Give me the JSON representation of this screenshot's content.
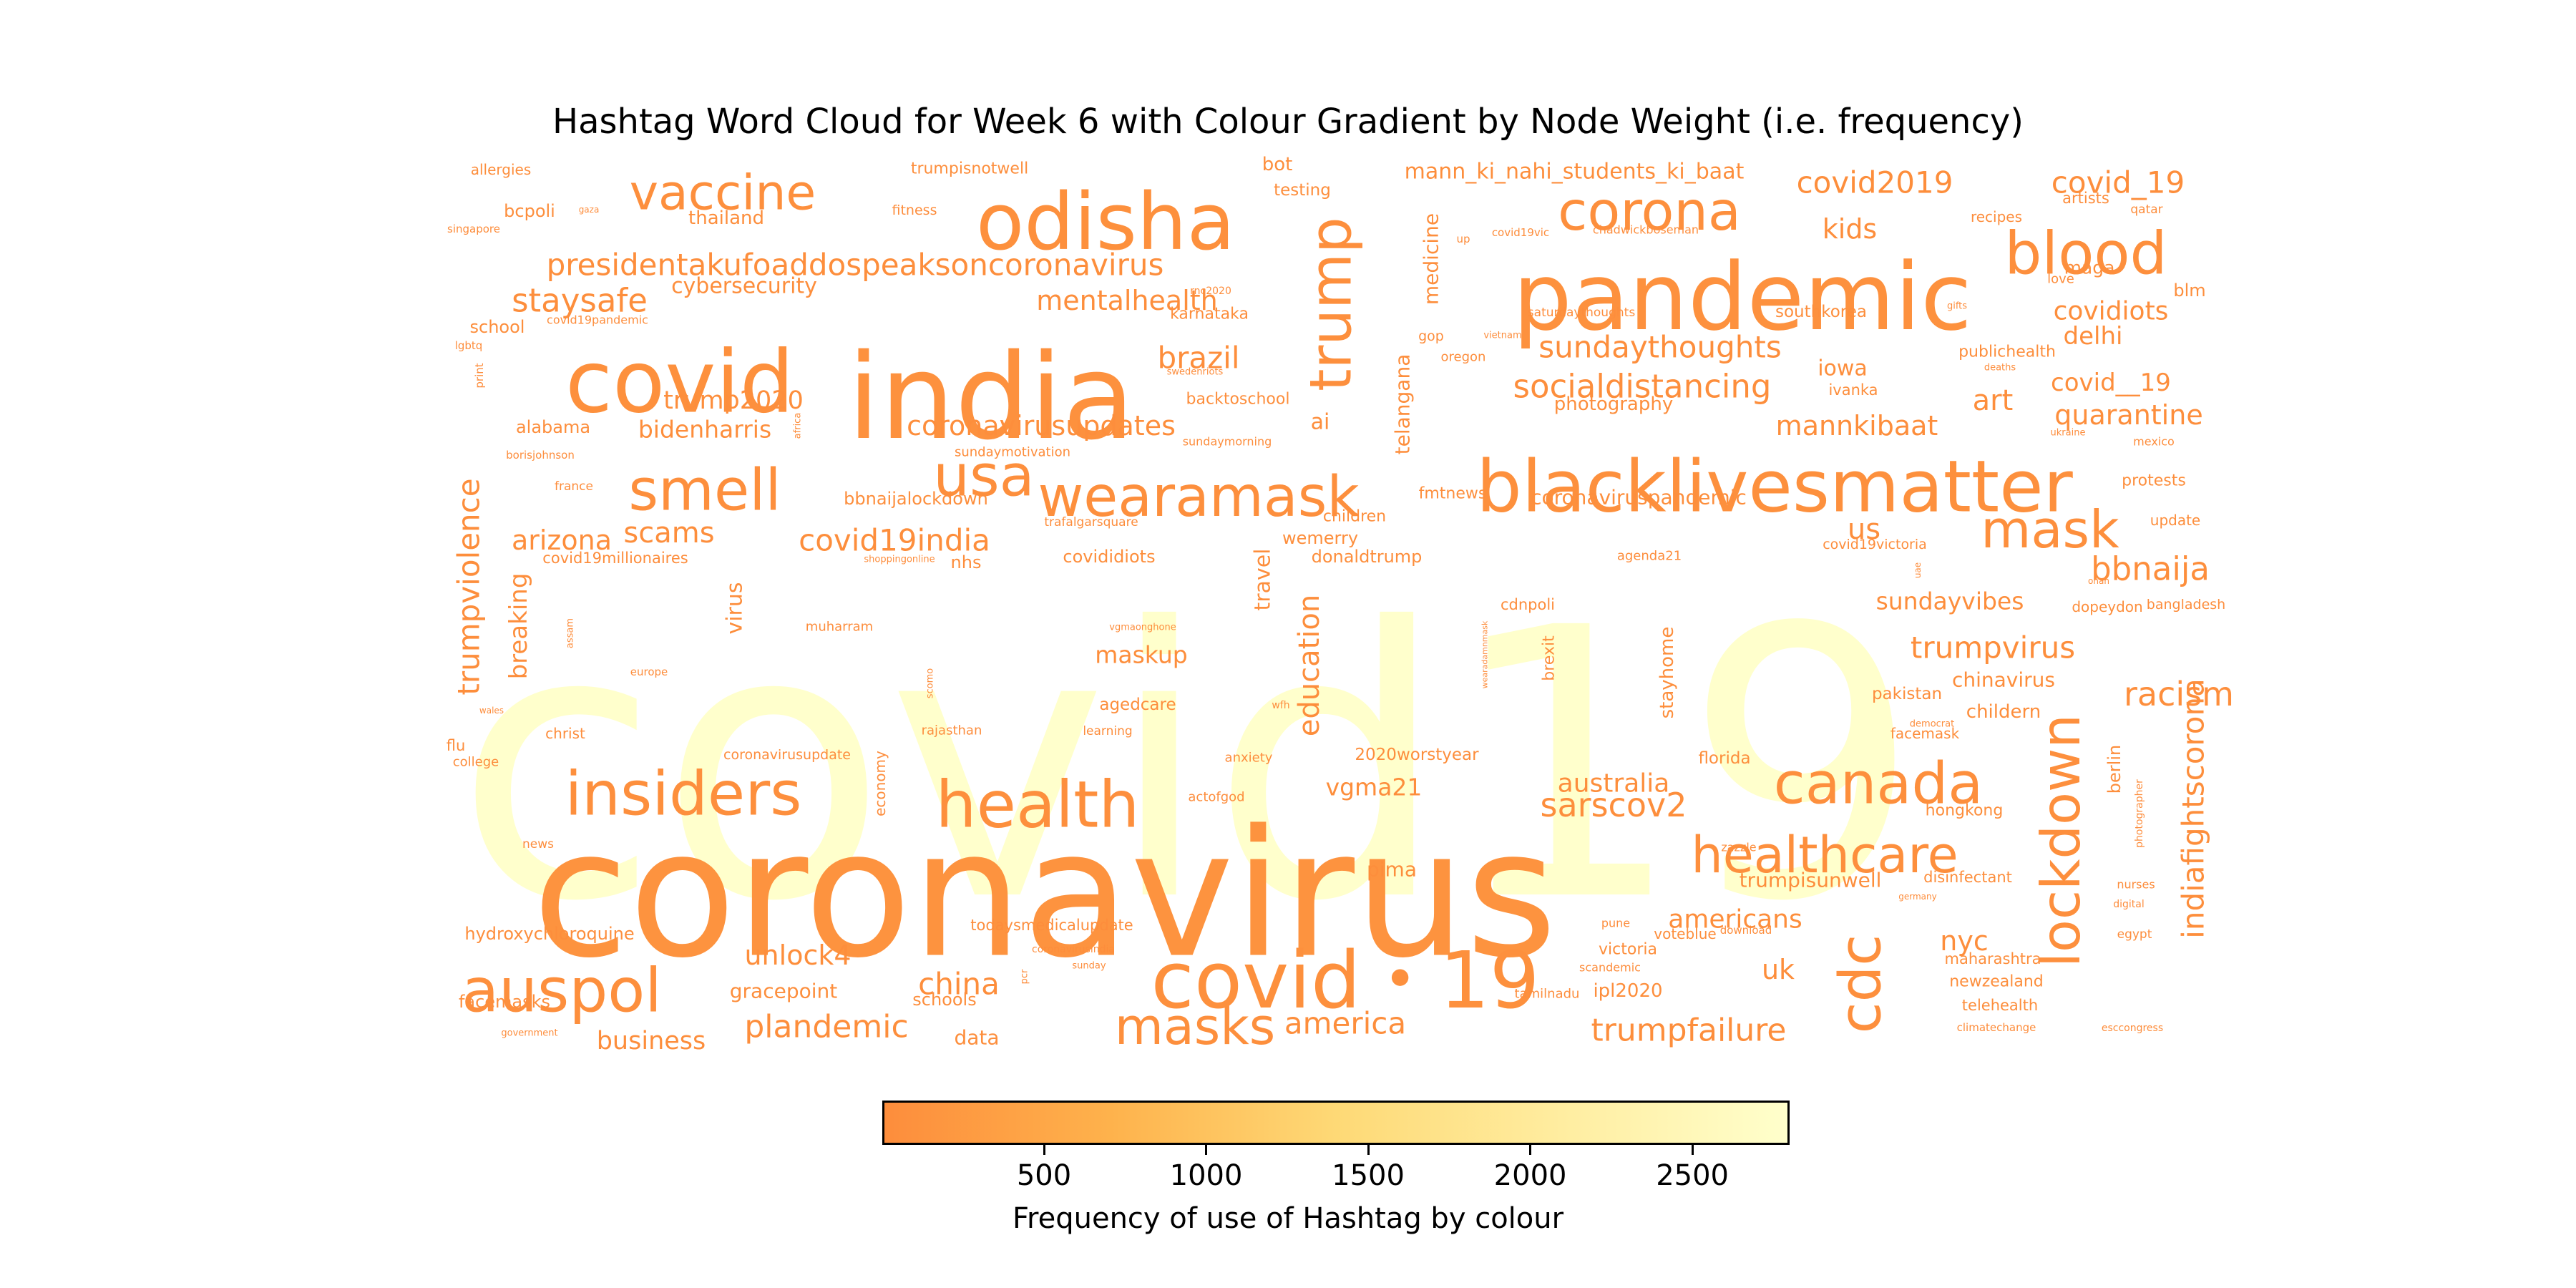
{
  "chart_data": {
    "type": "wordcloud",
    "title": "Hashtag Word Cloud for Week 6 with Colour Gradient by Node Weight (i.e. frequency)",
    "colorbar": {
      "label": "Frequency of use of Hashtag by colour",
      "range": [
        1,
        2800
      ],
      "ticks": [
        500,
        1000,
        1500,
        2000,
        2500
      ],
      "colors": [
        "#fd8d3c",
        "#feb24c",
        "#fed976",
        "#ffeda0",
        "#ffffcc"
      ]
    },
    "words": [
      {
        "text": "covid19",
        "rotate": 0,
        "weight": 2800
      },
      {
        "text": "coronavirus",
        "rotate": 0,
        "weight": 120
      },
      {
        "text": "india",
        "rotate": 0,
        "weight": 80
      },
      {
        "text": "pandemic",
        "rotate": 0,
        "weight": 70
      },
      {
        "text": "covid",
        "rotate": 0,
        "weight": 60
      },
      {
        "text": "blacklivesmatter",
        "rotate": 0,
        "weight": 55
      },
      {
        "text": "odisha",
        "rotate": 0,
        "weight": 50
      },
      {
        "text": "covid・19",
        "rotate": 0,
        "weight": 50
      },
      {
        "text": "health",
        "rotate": 0,
        "weight": 45
      },
      {
        "text": "insiders",
        "rotate": 0,
        "weight": 45
      },
      {
        "text": "auspol",
        "rotate": 0,
        "weight": 45
      },
      {
        "text": "canada",
        "rotate": 0,
        "weight": 40
      },
      {
        "text": "blood",
        "rotate": 0,
        "weight": 40
      },
      {
        "text": "corona",
        "rotate": 0,
        "weight": 40
      },
      {
        "text": "usa",
        "rotate": 0,
        "weight": 40
      },
      {
        "text": "smell",
        "rotate": 0,
        "weight": 40
      },
      {
        "text": "wearamask",
        "rotate": 0,
        "weight": 38
      },
      {
        "text": "masks",
        "rotate": 0,
        "weight": 38
      },
      {
        "text": "mask",
        "rotate": 0,
        "weight": 38
      },
      {
        "text": "healthcare",
        "rotate": 0,
        "weight": 36
      },
      {
        "text": "vaccine",
        "rotate": 0,
        "weight": 36
      },
      {
        "text": "lockdown",
        "rotate": 270,
        "weight": 45
      },
      {
        "text": "cdc",
        "rotate": 270,
        "weight": 45
      },
      {
        "text": "trump",
        "rotate": 270,
        "weight": 36
      },
      {
        "text": "presidentakufoaddospeaksoncoronavirus",
        "rotate": 0,
        "weight": 22
      },
      {
        "text": "covid2019",
        "rotate": 0,
        "weight": 22
      },
      {
        "text": "covid_19",
        "rotate": 0,
        "weight": 22
      },
      {
        "text": "trumpvirus",
        "rotate": 0,
        "weight": 22
      },
      {
        "text": "racism",
        "rotate": 0,
        "weight": 22
      },
      {
        "text": "bbnaija",
        "rotate": 0,
        "weight": 22
      },
      {
        "text": "sarscov2",
        "rotate": 0,
        "weight": 22
      },
      {
        "text": "trumpfailure",
        "rotate": 0,
        "weight": 22
      },
      {
        "text": "plandemic",
        "rotate": 0,
        "weight": 22
      },
      {
        "text": "covid19india",
        "rotate": 0,
        "weight": 22
      },
      {
        "text": "staysafe",
        "rotate": 0,
        "weight": 22
      },
      {
        "text": "sundaythoughts",
        "rotate": 0,
        "weight": 22
      },
      {
        "text": "socialdistancing",
        "rotate": 0,
        "weight": 22
      },
      {
        "text": "brazil",
        "rotate": 0,
        "weight": 22
      },
      {
        "text": "china",
        "rotate": 0,
        "weight": 22
      },
      {
        "text": "america",
        "rotate": 0,
        "weight": 22
      },
      {
        "text": "indiafightscorona",
        "rotate": 270,
        "weight": 22
      },
      {
        "text": "trumpviolence",
        "rotate": 270,
        "weight": 22
      },
      {
        "text": "education",
        "rotate": 270,
        "weight": 22
      },
      {
        "text": "mentalhealth",
        "rotate": 0,
        "weight": 18
      },
      {
        "text": "coronavirusupdates",
        "rotate": 0,
        "weight": 18
      },
      {
        "text": "scams",
        "rotate": 0,
        "weight": 18
      },
      {
        "text": "arizona",
        "rotate": 0,
        "weight": 18
      },
      {
        "text": "unlock4",
        "rotate": 0,
        "weight": 18
      },
      {
        "text": "quarantine",
        "rotate": 0,
        "weight": 18
      },
      {
        "text": "covidiots",
        "rotate": 0,
        "weight": 18
      },
      {
        "text": "delhi",
        "rotate": 0,
        "weight": 18
      },
      {
        "text": "covid__19",
        "rotate": 0,
        "weight": 18
      },
      {
        "text": "art",
        "rotate": 0,
        "weight": 18
      },
      {
        "text": "mannkibaat",
        "rotate": 0,
        "weight": 18
      },
      {
        "text": "kids",
        "rotate": 0,
        "weight": 18
      },
      {
        "text": "us",
        "rotate": 0,
        "weight": 18
      },
      {
        "text": "nyc",
        "rotate": 0,
        "weight": 18
      },
      {
        "text": "uk",
        "rotate": 0,
        "weight": 18
      },
      {
        "text": "americans",
        "rotate": 0,
        "weight": 16
      },
      {
        "text": "australia",
        "rotate": 0,
        "weight": 16
      },
      {
        "text": "trump2020",
        "rotate": 0,
        "weight": 16
      },
      {
        "text": "bidenharris",
        "rotate": 0,
        "weight": 16
      },
      {
        "text": "sundayvibes",
        "rotate": 0,
        "weight": 16
      },
      {
        "text": "business",
        "rotate": 0,
        "weight": 16
      },
      {
        "text": "maskup",
        "rotate": 0,
        "weight": 16
      },
      {
        "text": "vgma21",
        "rotate": 0,
        "weight": 16
      },
      {
        "text": "mann_ki_nahi_students_ki_baat",
        "rotate": 0,
        "weight": 16
      },
      {
        "text": "cybersecurity",
        "rotate": 0,
        "weight": 14
      },
      {
        "text": "iowa",
        "rotate": 0,
        "weight": 14
      },
      {
        "text": "trumpisunwell",
        "rotate": 0,
        "weight": 14
      },
      {
        "text": "gracepoint",
        "rotate": 0,
        "weight": 14
      },
      {
        "text": "coronaviruspandemic",
        "rotate": 0,
        "weight": 14
      },
      {
        "text": "photography",
        "rotate": 0,
        "weight": 14
      },
      {
        "text": "hydroxychloroquine",
        "rotate": 0,
        "weight": 14
      },
      {
        "text": "pima",
        "rotate": 0,
        "weight": 14
      },
      {
        "text": "ipl2020",
        "rotate": 0,
        "weight": 14
      },
      {
        "text": "chinavirus",
        "rotate": 0,
        "weight": 14
      },
      {
        "text": "childern",
        "rotate": 0,
        "weight": 14
      },
      {
        "text": "ai",
        "rotate": 0,
        "weight": 14
      },
      {
        "text": "data",
        "rotate": 0,
        "weight": 14
      },
      {
        "text": "facemasks",
        "rotate": 0,
        "weight": 12
      },
      {
        "text": "schools",
        "rotate": 0,
        "weight": 12
      },
      {
        "text": "thailand",
        "rotate": 0,
        "weight": 12
      },
      {
        "text": "bcpoli",
        "rotate": 0,
        "weight": 12
      },
      {
        "text": "school",
        "rotate": 0,
        "weight": 12
      },
      {
        "text": "alabama",
        "rotate": 0,
        "weight": 12
      },
      {
        "text": "bot",
        "rotate": 0,
        "weight": 12
      },
      {
        "text": "testing",
        "rotate": 0,
        "weight": 12
      },
      {
        "text": "trumpisnotwell",
        "rotate": 0,
        "weight": 11
      },
      {
        "text": "allergies",
        "rotate": 0,
        "weight": 11
      },
      {
        "text": "southkorea",
        "rotate": 0,
        "weight": 12
      },
      {
        "text": "publichealth",
        "rotate": 0,
        "weight": 11
      },
      {
        "text": "karnataka",
        "rotate": 0,
        "weight": 11
      },
      {
        "text": "backtoschool",
        "rotate": 0,
        "weight": 12
      },
      {
        "text": "bbnaijalockdown",
        "rotate": 0,
        "weight": 12
      },
      {
        "text": "covididiots",
        "rotate": 0,
        "weight": 12
      },
      {
        "text": "donaldtrump",
        "rotate": 0,
        "weight": 12
      },
      {
        "text": "wemerry",
        "rotate": 0,
        "weight": 12
      },
      {
        "text": "children",
        "rotate": 0,
        "weight": 12
      },
      {
        "text": "fmtnews",
        "rotate": 0,
        "weight": 12
      },
      {
        "text": "agedcare",
        "rotate": 0,
        "weight": 12
      },
      {
        "text": "2020worstyear",
        "rotate": 0,
        "weight": 12
      },
      {
        "text": "florida",
        "rotate": 0,
        "weight": 12
      },
      {
        "text": "facemask",
        "rotate": 0,
        "weight": 11
      },
      {
        "text": "pakistan",
        "rotate": 0,
        "weight": 12
      },
      {
        "text": "hongkong",
        "rotate": 0,
        "weight": 11
      },
      {
        "text": "disinfectant",
        "rotate": 0,
        "weight": 11
      },
      {
        "text": "voteblue",
        "rotate": 0,
        "weight": 11
      },
      {
        "text": "victoria",
        "rotate": 0,
        "weight": 11
      },
      {
        "text": "maharashtra",
        "rotate": 0,
        "weight": 11
      },
      {
        "text": "newzealand",
        "rotate": 0,
        "weight": 11
      },
      {
        "text": "telehealth",
        "rotate": 0,
        "weight": 11
      },
      {
        "text": "protests",
        "rotate": 0,
        "weight": 11
      },
      {
        "text": "update",
        "rotate": 0,
        "weight": 11
      },
      {
        "text": "dopeydon",
        "rotate": 0,
        "weight": 11
      },
      {
        "text": "bangladesh",
        "rotate": 0,
        "weight": 10
      },
      {
        "text": "ivanka",
        "rotate": 0,
        "weight": 11
      },
      {
        "text": "maga",
        "rotate": 0,
        "weight": 11
      },
      {
        "text": "blm",
        "rotate": 0,
        "weight": 11
      },
      {
        "text": "artists",
        "rotate": 0,
        "weight": 10
      },
      {
        "text": "recipes",
        "rotate": 0,
        "weight": 10
      },
      {
        "text": "fitness",
        "rotate": 0,
        "weight": 10
      },
      {
        "text": "todaysmedicalupdate",
        "rotate": 0,
        "weight": 10
      },
      {
        "text": "coronavirusupdate",
        "rotate": 0,
        "weight": 10
      },
      {
        "text": "covid19millionaires",
        "rotate": 0,
        "weight": 10
      },
      {
        "text": "cdnpoli",
        "rotate": 0,
        "weight": 10
      },
      {
        "text": "nhs",
        "rotate": 0,
        "weight": 11
      },
      {
        "text": "christ",
        "rotate": 0,
        "weight": 10
      },
      {
        "text": "flu",
        "rotate": 0,
        "weight": 10
      },
      {
        "text": "anxiety",
        "rotate": 0,
        "weight": 10
      },
      {
        "text": "actofgod",
        "rotate": 0,
        "weight": 10
      },
      {
        "text": "muharram",
        "rotate": 0,
        "weight": 9
      },
      {
        "text": "trafalgarsquare",
        "rotate": 0,
        "weight": 9
      },
      {
        "text": "sundaymotivation",
        "rotate": 0,
        "weight": 9
      },
      {
        "text": "sundaymorning",
        "rotate": 0,
        "weight": 8
      },
      {
        "text": "rajasthan",
        "rotate": 0,
        "weight": 9
      },
      {
        "text": "learning",
        "rotate": 0,
        "weight": 9
      },
      {
        "text": "covid19victoria",
        "rotate": 0,
        "weight": 9
      },
      {
        "text": "agenda21",
        "rotate": 0,
        "weight": 9
      },
      {
        "text": "saturdaythoughts",
        "rotate": 0,
        "weight": 9
      },
      {
        "text": "covid19pandemic",
        "rotate": 0,
        "weight": 8
      },
      {
        "text": "france",
        "rotate": 0,
        "weight": 8
      },
      {
        "text": "borisjohnson",
        "rotate": 0,
        "weight": 8
      },
      {
        "text": "europe",
        "rotate": 0,
        "weight": 8
      },
      {
        "text": "college",
        "rotate": 0,
        "weight": 9
      },
      {
        "text": "news",
        "rotate": 0,
        "weight": 8
      },
      {
        "text": "oregon",
        "rotate": 0,
        "weight": 9
      },
      {
        "text": "gop",
        "rotate": 0,
        "weight": 9
      },
      {
        "text": "pune",
        "rotate": 0,
        "weight": 8
      },
      {
        "text": "scandemic",
        "rotate": 0,
        "weight": 8
      },
      {
        "text": "tamilnadu",
        "rotate": 0,
        "weight": 9
      },
      {
        "text": "zazzle",
        "rotate": 0,
        "weight": 8
      },
      {
        "text": "nurses",
        "rotate": 0,
        "weight": 8
      },
      {
        "text": "egypt",
        "rotate": 0,
        "weight": 8
      },
      {
        "text": "mexico",
        "rotate": 0,
        "weight": 8
      },
      {
        "text": "love",
        "rotate": 0,
        "weight": 8
      },
      {
        "text": "qatar",
        "rotate": 0,
        "weight": 8
      },
      {
        "text": "singapore",
        "rotate": 0,
        "weight": 7
      },
      {
        "text": "government",
        "rotate": 0,
        "weight": 6
      },
      {
        "text": "esccongress",
        "rotate": 0,
        "weight": 6
      },
      {
        "text": "climatechange",
        "rotate": 0,
        "weight": 7
      },
      {
        "text": "download",
        "rotate": 0,
        "weight": 7
      },
      {
        "text": "lgbtq",
        "rotate": 0,
        "weight": 7
      },
      {
        "text": "chadwickboseman",
        "rotate": 0,
        "weight": 7
      },
      {
        "text": "covid19vic",
        "rotate": 0,
        "weight": 7
      },
      {
        "text": "rnc2020",
        "rotate": 0,
        "weight": 7
      },
      {
        "text": "swedenriots",
        "rotate": 0,
        "weight": 6
      },
      {
        "text": "deaths",
        "rotate": 0,
        "weight": 6
      },
      {
        "text": "gifts",
        "rotate": 0,
        "weight": 6
      },
      {
        "text": "ukraine",
        "rotate": 0,
        "weight": 6
      },
      {
        "text": "vietnam",
        "rotate": 0,
        "weight": 6
      },
      {
        "text": "shoppingonline",
        "rotate": 0,
        "weight": 6
      },
      {
        "text": "vgmaonghone",
        "rotate": 0,
        "weight": 6
      },
      {
        "text": "democrat",
        "rotate": 0,
        "weight": 6
      },
      {
        "text": "germany",
        "rotate": 0,
        "weight": 6
      },
      {
        "text": "digital",
        "rotate": 0,
        "weight": 6
      },
      {
        "text": "coronavirusindia",
        "rotate": 0,
        "weight": 6
      },
      {
        "text": "sunday",
        "rotate": 0,
        "weight": 6
      },
      {
        "text": "onah",
        "rotate": 0,
        "weight": 5
      },
      {
        "text": "up",
        "rotate": 0,
        "weight": 6
      },
      {
        "text": "gaza",
        "rotate": 0,
        "weight": 5
      },
      {
        "text": "wales",
        "rotate": 0,
        "weight": 5
      },
      {
        "text": "wfh",
        "rotate": 0,
        "weight": 6
      },
      {
        "text": "medicine",
        "rotate": 270,
        "weight": 14
      },
      {
        "text": "telangana",
        "rotate": 270,
        "weight": 14
      },
      {
        "text": "travel",
        "rotate": 270,
        "weight": 14
      },
      {
        "text": "virus",
        "rotate": 270,
        "weight": 14
      },
      {
        "text": "breaking",
        "rotate": 270,
        "weight": 16
      },
      {
        "text": "stayhome",
        "rotate": 270,
        "weight": 13
      },
      {
        "text": "brexit",
        "rotate": 270,
        "weight": 11
      },
      {
        "text": "berlin",
        "rotate": 270,
        "weight": 12
      },
      {
        "text": "economy",
        "rotate": 270,
        "weight": 10
      },
      {
        "text": "photographer",
        "rotate": 270,
        "weight": 7
      },
      {
        "text": "print",
        "rotate": 270,
        "weight": 7
      },
      {
        "text": "africa",
        "rotate": 270,
        "weight": 6
      },
      {
        "text": "assam",
        "rotate": 270,
        "weight": 6
      },
      {
        "text": "scomo",
        "rotate": 270,
        "weight": 6
      },
      {
        "text": "pcr",
        "rotate": 270,
        "weight": 6
      },
      {
        "text": "uae",
        "rotate": 270,
        "weight": 5
      },
      {
        "text": "wearadamnmask",
        "rotate": 270,
        "weight": 5
      }
    ]
  }
}
